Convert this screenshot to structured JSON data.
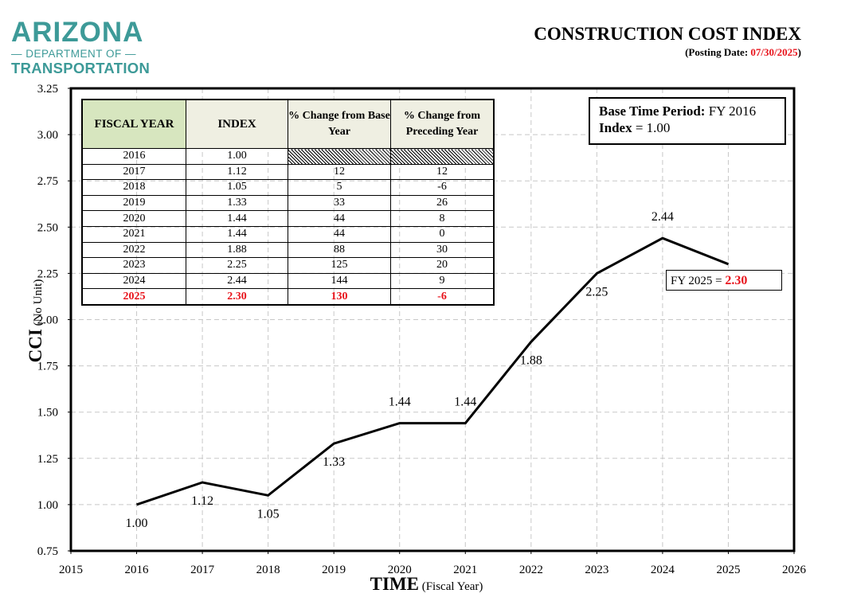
{
  "logo": {
    "line1": "ARIZONA",
    "line2": "— DEPARTMENT OF —",
    "line3": "TRANSPORTATION"
  },
  "header": {
    "title": "CONSTRUCTION COST INDEX",
    "posting_prefix": "(Posting Date: ",
    "posting_date": "07/30/2025",
    "posting_suffix": ")"
  },
  "colors": {
    "accent_red": "#e8141c",
    "logo_teal": "#3d9a98",
    "header_green": "#d7e6bf",
    "header_beige": "#efefe2"
  },
  "base_box": {
    "label1": "Base Time Period:",
    "value1": "FY 2016",
    "label2": "Index",
    "value2": "= 1.00"
  },
  "callout": {
    "label": "FY 2025 = ",
    "value": "2.30"
  },
  "table": {
    "headers": [
      "FISCAL YEAR",
      "INDEX",
      "% Change from Base Year",
      "% Change from Preceding Year"
    ],
    "rows": [
      [
        "2016",
        "1.00",
        "",
        ""
      ],
      [
        "2017",
        "1.12",
        "12",
        "12"
      ],
      [
        "2018",
        "1.05",
        "5",
        "-6"
      ],
      [
        "2019",
        "1.33",
        "33",
        "26"
      ],
      [
        "2020",
        "1.44",
        "44",
        "8"
      ],
      [
        "2021",
        "1.44",
        "44",
        "0"
      ],
      [
        "2022",
        "1.88",
        "88",
        "30"
      ],
      [
        "2023",
        "2.25",
        "125",
        "20"
      ],
      [
        "2024",
        "2.44",
        "144",
        "9"
      ],
      [
        "2025",
        "2.30",
        "130",
        "-6"
      ]
    ]
  },
  "chart_data": {
    "type": "line",
    "title": "CONSTRUCTION COST INDEX",
    "xlabel": "TIME",
    "xlabel_unit": "(Fiscal Year)",
    "ylabel": "CCI",
    "ylabel_unit": "(No Unit)",
    "xlim": [
      2015,
      2026
    ],
    "ylim": [
      0.75,
      3.25
    ],
    "xticks": [
      "2015",
      "2016",
      "2017",
      "2018",
      "2019",
      "2020",
      "2021",
      "2022",
      "2023",
      "2024",
      "2025",
      "2026"
    ],
    "yticks": [
      "0.75",
      "1.00",
      "1.25",
      "1.50",
      "1.75",
      "2.00",
      "2.25",
      "2.50",
      "2.75",
      "3.00",
      "3.25"
    ],
    "grid": true,
    "x": [
      2016,
      2017,
      2018,
      2019,
      2020,
      2021,
      2022,
      2023,
      2024,
      2025
    ],
    "y": [
      1.0,
      1.12,
      1.05,
      1.33,
      1.44,
      1.44,
      1.88,
      2.25,
      2.44,
      2.3
    ],
    "data_labels": [
      "1.00",
      "1.12",
      "1.05",
      "1.33",
      "1.44",
      "1.44",
      "1.88",
      "2.25",
      "2.44",
      ""
    ],
    "label_position": [
      "below",
      "below",
      "below",
      "below",
      "above",
      "above",
      "below",
      "below",
      "above",
      "none"
    ]
  }
}
